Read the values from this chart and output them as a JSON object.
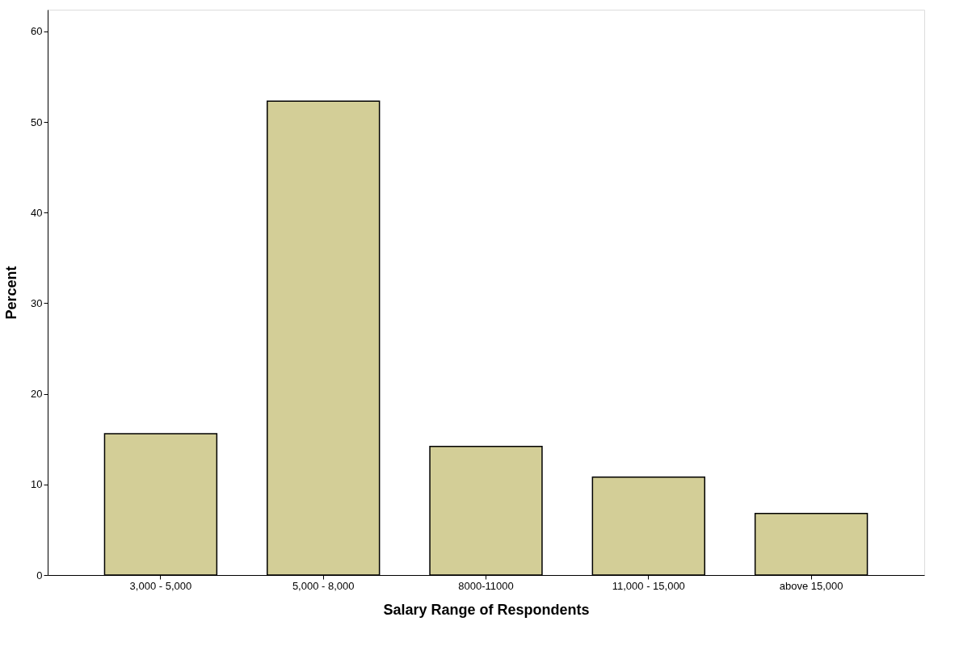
{
  "chart_data": {
    "type": "bar",
    "xlabel": "Salary Range of Respondents",
    "ylabel": "Percent",
    "categories": [
      "3,000 - 5,000",
      "5,000 - 8,000",
      "8000-11000",
      "11,000 - 15,000",
      "above 15,000"
    ],
    "values": [
      15.6,
      52.3,
      14.2,
      10.8,
      6.8
    ],
    "color": "#d3ce97",
    "ylim": [
      0,
      62.4
    ],
    "yticks": [
      0,
      10,
      20,
      30,
      40,
      50,
      60
    ],
    "grid": false
  }
}
